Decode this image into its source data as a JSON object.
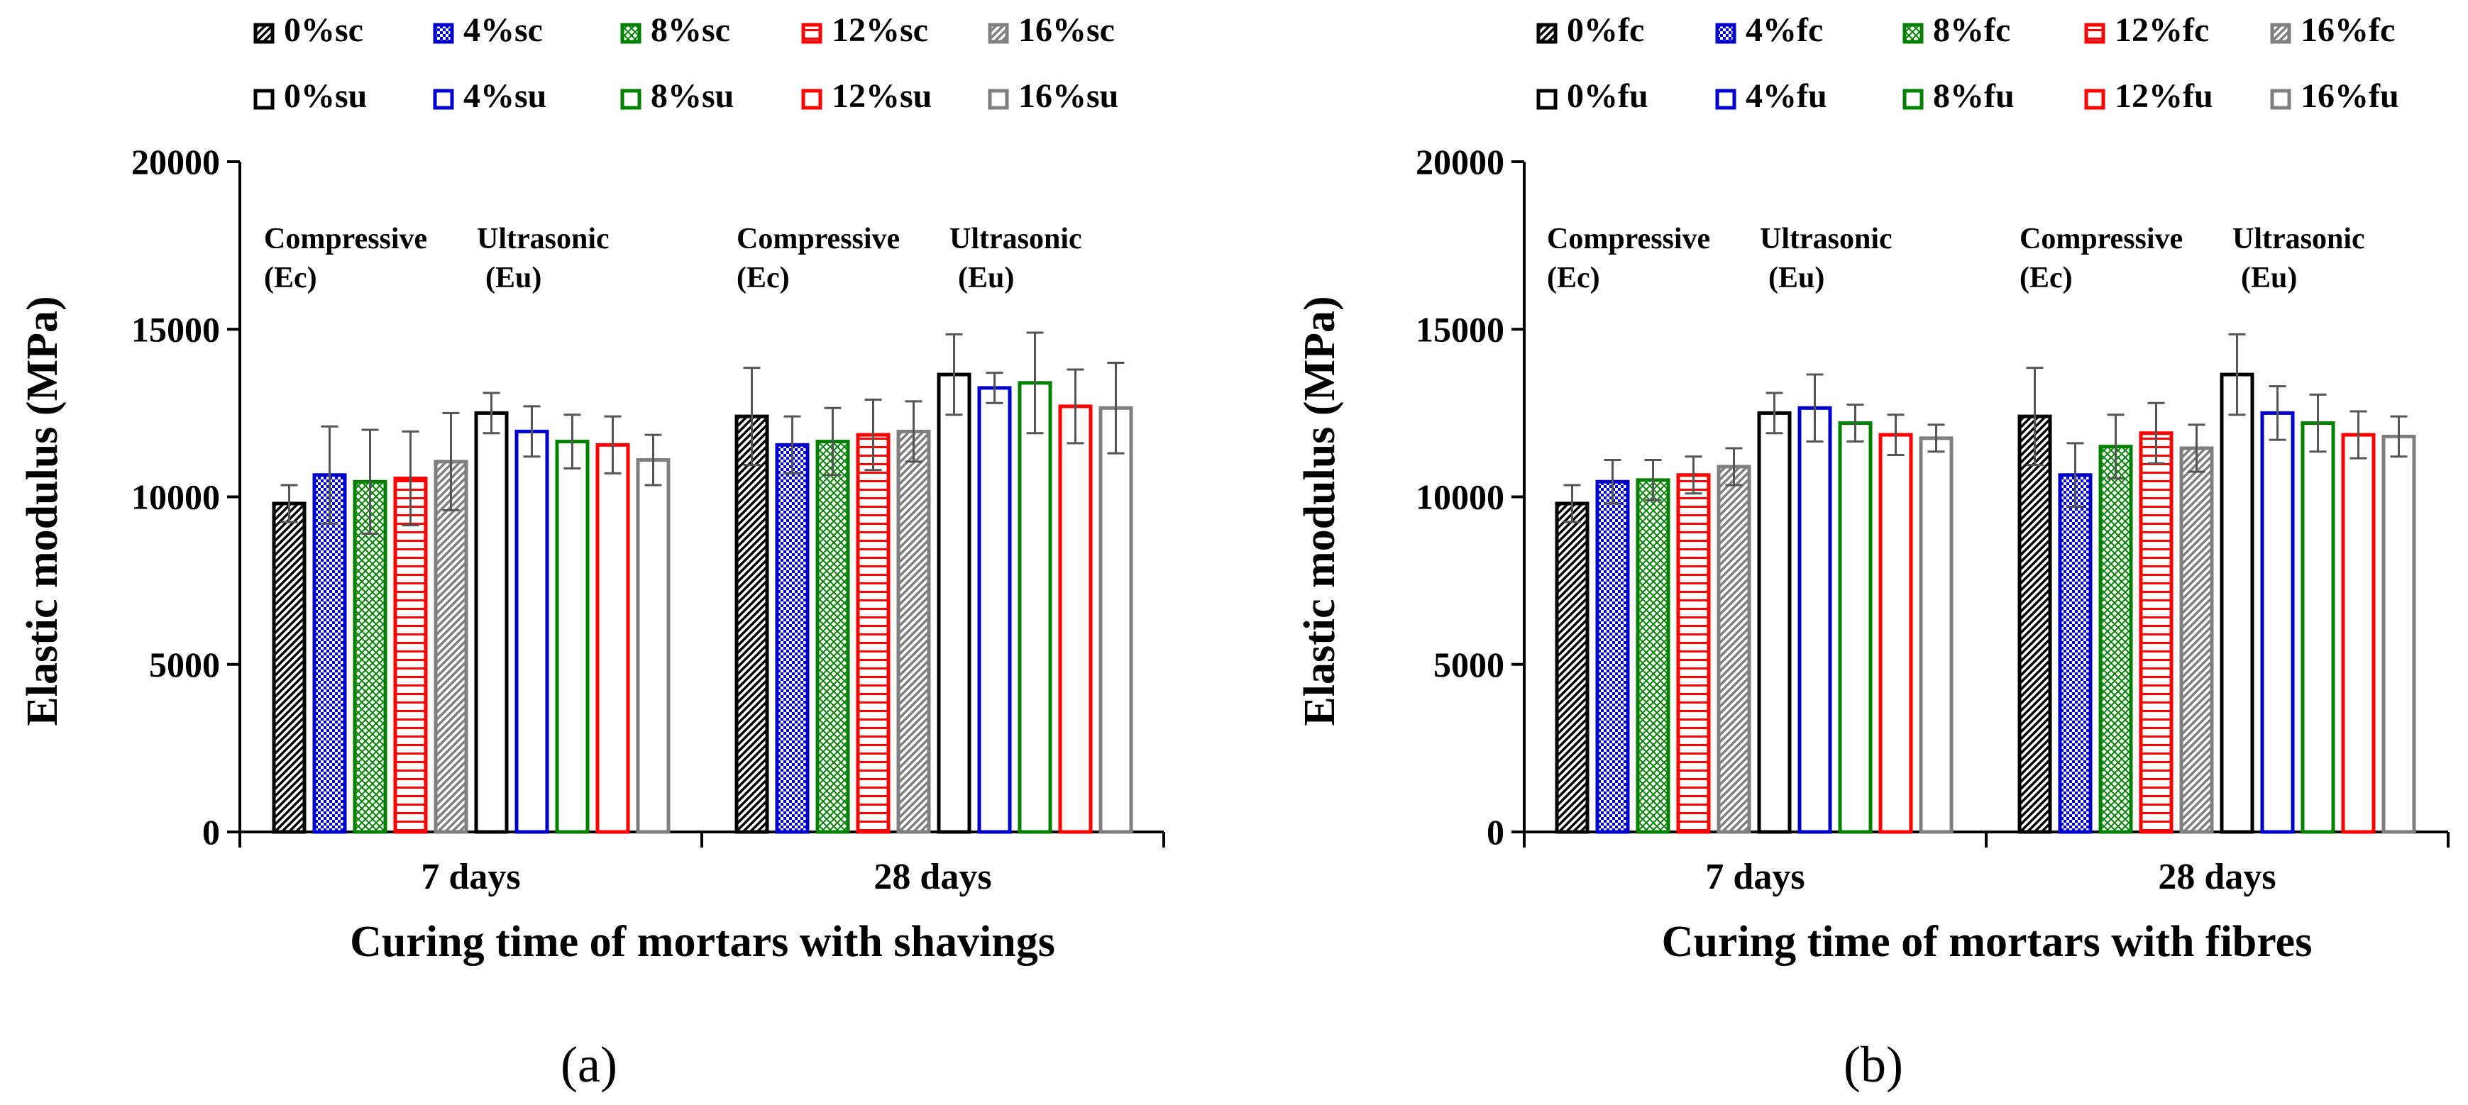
{
  "chart_data": [
    {
      "panel_label": "(a)",
      "type": "bar",
      "xlabel": "Curing time of mortars with shavings",
      "ylabel": "Elastic modulus (MPa)",
      "ylim": [
        0,
        20000
      ],
      "yticks": [
        0,
        5000,
        10000,
        15000,
        20000
      ],
      "ytick_labels": [
        "0",
        "5000",
        "10000",
        "15000",
        "20000"
      ],
      "categories": [
        "7 days",
        "28 days"
      ],
      "group_annotations": [
        {
          "line1": "Compressive",
          "line2": "(Ec)"
        },
        {
          "line1": "Ultrasonic",
          "line2": "(Eu)"
        }
      ],
      "legend_position": "top",
      "series": [
        {
          "name": "0%sc",
          "color": "#000000",
          "pattern": "diag",
          "values": [
            9800,
            12400
          ],
          "errors": [
            550,
            1450
          ]
        },
        {
          "name": "4%sc",
          "color": "#0000CC",
          "pattern": "dots",
          "values": [
            10650,
            11550
          ],
          "errors": [
            1450,
            850
          ]
        },
        {
          "name": "8%sc",
          "color": "#008000",
          "pattern": "cross",
          "values": [
            10450,
            11650
          ],
          "errors": [
            1550,
            1000
          ]
        },
        {
          "name": "12%sc",
          "color": "#FF0000",
          "pattern": "hline",
          "values": [
            10550,
            11850
          ],
          "errors": [
            1400,
            1050
          ]
        },
        {
          "name": "16%sc",
          "color": "#7F7F7F",
          "pattern": "diag",
          "values": [
            11050,
            11950
          ],
          "errors": [
            1450,
            900
          ]
        },
        {
          "name": "0%su",
          "color": "#000000",
          "pattern": "none",
          "values": [
            12500,
            13650
          ],
          "errors": [
            600,
            1200
          ]
        },
        {
          "name": "4%su",
          "color": "#0000CC",
          "pattern": "none",
          "values": [
            11950,
            13250
          ],
          "errors": [
            750,
            450
          ]
        },
        {
          "name": "8%su",
          "color": "#008000",
          "pattern": "none",
          "values": [
            11650,
            13400
          ],
          "errors": [
            800,
            1500
          ]
        },
        {
          "name": "12%su",
          "color": "#FF0000",
          "pattern": "none",
          "values": [
            11550,
            12700
          ],
          "errors": [
            850,
            1100
          ]
        },
        {
          "name": "16%su",
          "color": "#7F7F7F",
          "pattern": "none",
          "values": [
            11100,
            12650
          ],
          "errors": [
            750,
            1350
          ]
        }
      ]
    },
    {
      "panel_label": "(b)",
      "type": "bar",
      "xlabel": "Curing time of mortars with fibres",
      "ylabel": "Elastic modulus (MPa)",
      "ylim": [
        0,
        20000
      ],
      "yticks": [
        0,
        5000,
        10000,
        15000,
        20000
      ],
      "ytick_labels": [
        "0",
        "5000",
        "10000",
        "15000",
        "20000"
      ],
      "categories": [
        "7 days",
        "28 days"
      ],
      "group_annotations": [
        {
          "line1": "Compressive",
          "line2": "(Ec)"
        },
        {
          "line1": "Ultrasonic",
          "line2": "(Eu)"
        }
      ],
      "legend_position": "top",
      "series": [
        {
          "name": "0%fc",
          "color": "#000000",
          "pattern": "diag",
          "values": [
            9800,
            12400
          ],
          "errors": [
            550,
            1450
          ]
        },
        {
          "name": "4%fc",
          "color": "#0000CC",
          "pattern": "dots",
          "values": [
            10450,
            10650
          ],
          "errors": [
            650,
            950
          ]
        },
        {
          "name": "8%fc",
          "color": "#008000",
          "pattern": "cross",
          "values": [
            10500,
            11500
          ],
          "errors": [
            600,
            950
          ]
        },
        {
          "name": "12%fc",
          "color": "#FF0000",
          "pattern": "hline",
          "values": [
            10650,
            11900
          ],
          "errors": [
            550,
            900
          ]
        },
        {
          "name": "16%fc",
          "color": "#7F7F7F",
          "pattern": "diag",
          "values": [
            10900,
            11450
          ],
          "errors": [
            550,
            700
          ]
        },
        {
          "name": "0%fu",
          "color": "#000000",
          "pattern": "none",
          "values": [
            12500,
            13650
          ],
          "errors": [
            600,
            1200
          ]
        },
        {
          "name": "4%fu",
          "color": "#0000CC",
          "pattern": "none",
          "values": [
            12650,
            12500
          ],
          "errors": [
            1000,
            800
          ]
        },
        {
          "name": "8%fu",
          "color": "#008000",
          "pattern": "none",
          "values": [
            12200,
            12200
          ],
          "errors": [
            550,
            850
          ]
        },
        {
          "name": "12%fu",
          "color": "#FF0000",
          "pattern": "none",
          "values": [
            11850,
            11850
          ],
          "errors": [
            600,
            700
          ]
        },
        {
          "name": "16%fu",
          "color": "#7F7F7F",
          "pattern": "none",
          "values": [
            11750,
            11800
          ],
          "errors": [
            400,
            600
          ]
        }
      ]
    }
  ]
}
